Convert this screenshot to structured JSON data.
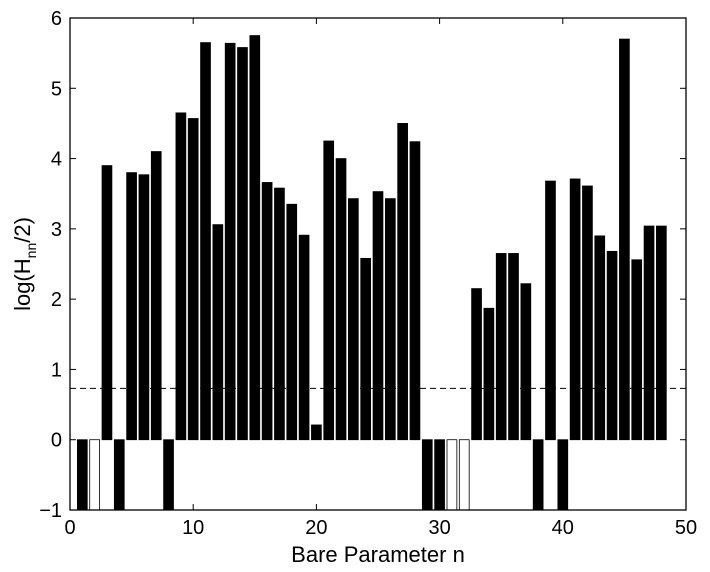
{
  "chart_data": {
    "type": "bar",
    "xlabel": "Bare Parameter n",
    "ylabel_parts": {
      "prefix": "log(H",
      "subscript": "nn",
      "suffix": "/2)"
    },
    "xlim": [
      0,
      50
    ],
    "ylim": [
      -1,
      6
    ],
    "x_ticks": [
      0,
      10,
      20,
      30,
      40,
      50
    ],
    "y_ticks": [
      -1,
      0,
      1,
      2,
      3,
      4,
      5,
      6
    ],
    "grid": false,
    "reference_line": {
      "y": 0.73,
      "style": "dashed"
    },
    "filled_color": "#000000",
    "open_color": "#ffffff",
    "bars": [
      {
        "x": 1,
        "value": -1,
        "filled": true
      },
      {
        "x": 2,
        "value": -1,
        "filled": false
      },
      {
        "x": 3,
        "value": 3.9,
        "filled": true
      },
      {
        "x": 4,
        "value": -1,
        "filled": true
      },
      {
        "x": 5,
        "value": 3.8,
        "filled": true
      },
      {
        "x": 6,
        "value": 3.77,
        "filled": true
      },
      {
        "x": 7,
        "value": 4.1,
        "filled": true
      },
      {
        "x": 8,
        "value": -1,
        "filled": true
      },
      {
        "x": 9,
        "value": 4.65,
        "filled": true
      },
      {
        "x": 10,
        "value": 4.57,
        "filled": true
      },
      {
        "x": 11,
        "value": 5.65,
        "filled": true
      },
      {
        "x": 12,
        "value": 3.06,
        "filled": true
      },
      {
        "x": 13,
        "value": 5.64,
        "filled": true
      },
      {
        "x": 14,
        "value": 5.58,
        "filled": true
      },
      {
        "x": 15,
        "value": 5.75,
        "filled": true
      },
      {
        "x": 16,
        "value": 3.66,
        "filled": true
      },
      {
        "x": 17,
        "value": 3.58,
        "filled": true
      },
      {
        "x": 18,
        "value": 3.35,
        "filled": true
      },
      {
        "x": 19,
        "value": 2.91,
        "filled": true
      },
      {
        "x": 20,
        "value": 0.21,
        "filled": true
      },
      {
        "x": 21,
        "value": 4.25,
        "filled": true
      },
      {
        "x": 22,
        "value": 4.0,
        "filled": true
      },
      {
        "x": 23,
        "value": 3.43,
        "filled": true
      },
      {
        "x": 24,
        "value": 2.58,
        "filled": true
      },
      {
        "x": 25,
        "value": 3.53,
        "filled": true
      },
      {
        "x": 26,
        "value": 3.43,
        "filled": true
      },
      {
        "x": 27,
        "value": 4.5,
        "filled": true
      },
      {
        "x": 28,
        "value": 4.24,
        "filled": true
      },
      {
        "x": 29,
        "value": -1,
        "filled": true
      },
      {
        "x": 30,
        "value": -1,
        "filled": true
      },
      {
        "x": 31,
        "value": -1,
        "filled": false
      },
      {
        "x": 32,
        "value": -1,
        "filled": false
      },
      {
        "x": 33,
        "value": 2.15,
        "filled": true
      },
      {
        "x": 34,
        "value": 1.87,
        "filled": true
      },
      {
        "x": 35,
        "value": 2.65,
        "filled": true
      },
      {
        "x": 36,
        "value": 2.65,
        "filled": true
      },
      {
        "x": 37,
        "value": 2.22,
        "filled": true
      },
      {
        "x": 38,
        "value": -1,
        "filled": true
      },
      {
        "x": 39,
        "value": 3.68,
        "filled": true
      },
      {
        "x": 40,
        "value": -1,
        "filled": true
      },
      {
        "x": 41,
        "value": 3.71,
        "filled": true
      },
      {
        "x": 42,
        "value": 3.61,
        "filled": true
      },
      {
        "x": 43,
        "value": 2.9,
        "filled": true
      },
      {
        "x": 44,
        "value": 2.68,
        "filled": true
      },
      {
        "x": 45,
        "value": 5.7,
        "filled": true
      },
      {
        "x": 46,
        "value": 2.56,
        "filled": true
      },
      {
        "x": 47,
        "value": 3.04,
        "filled": true
      },
      {
        "x": 48,
        "value": 3.04,
        "filled": true
      }
    ]
  }
}
